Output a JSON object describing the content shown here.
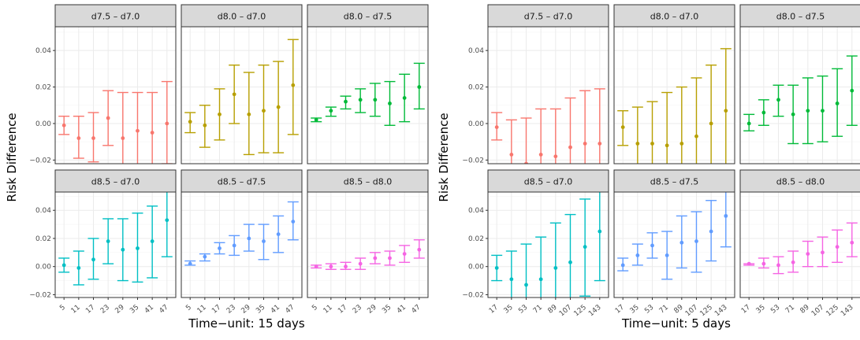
{
  "figures": [
    {
      "ylabel": "Risk Difference",
      "xlabel": "Time−unit: 15 days"
    },
    {
      "ylabel": "Risk Difference",
      "xlabel": "Time−unit: 5 days"
    }
  ],
  "colors": {
    "d7.5 – d7.0": "#F8766D",
    "d8.0 – d7.0": "#B79F00",
    "d8.0 – d7.5": "#00BA38",
    "d8.5 – d7.0": "#00BFC4",
    "d8.5 – d7.5": "#619CFF",
    "d8.5 – d8.0": "#F564E3"
  },
  "chart_data": [
    {
      "type": "scatter",
      "subtype": "point-range with error bars, faceted 2x3",
      "xlabel": "Time−unit: 15 days",
      "ylabel": "Risk Difference",
      "x_ticks": [
        "5",
        "11",
        "17",
        "23",
        "29",
        "35",
        "41",
        "47"
      ],
      "ylim": [
        -0.022,
        0.053
      ],
      "y_ticks": [
        -0.02,
        0.0,
        0.02,
        0.04
      ],
      "y_tick_labels": [
        "−0.02",
        "0.00",
        "0.02",
        "0.04"
      ],
      "grid": true,
      "panels": [
        {
          "title": "d7.5 – d7.0",
          "points": [
            {
              "x": "5",
              "y": -0.001,
              "lo": -0.006,
              "hi": 0.004
            },
            {
              "x": "11",
              "y": -0.008,
              "lo": -0.019,
              "hi": 0.004
            },
            {
              "x": "17",
              "y": -0.008,
              "lo": -0.021,
              "hi": 0.006
            },
            {
              "x": "23",
              "y": 0.003,
              "lo": -0.012,
              "hi": 0.018
            },
            {
              "x": "29",
              "y": -0.008,
              "lo": -0.034,
              "hi": 0.017
            },
            {
              "x": "35",
              "y": -0.004,
              "lo": -0.026,
              "hi": 0.017
            },
            {
              "x": "41",
              "y": -0.005,
              "lo": -0.027,
              "hi": 0.017
            },
            {
              "x": "47",
              "y": 0.0,
              "lo": -0.022,
              "hi": 0.023
            }
          ]
        },
        {
          "title": "d8.0 – d7.0",
          "points": [
            {
              "x": "5",
              "y": 0.001,
              "lo": -0.005,
              "hi": 0.006
            },
            {
              "x": "11",
              "y": -0.001,
              "lo": -0.013,
              "hi": 0.01
            },
            {
              "x": "17",
              "y": 0.005,
              "lo": -0.009,
              "hi": 0.019
            },
            {
              "x": "23",
              "y": 0.016,
              "lo": 0.0,
              "hi": 0.032
            },
            {
              "x": "29",
              "y": 0.005,
              "lo": -0.017,
              "hi": 0.028
            },
            {
              "x": "35",
              "y": 0.007,
              "lo": -0.016,
              "hi": 0.032
            },
            {
              "x": "41",
              "y": 0.009,
              "lo": -0.016,
              "hi": 0.034
            },
            {
              "x": "47",
              "y": 0.021,
              "lo": -0.006,
              "hi": 0.046
            }
          ]
        },
        {
          "title": "d8.0 – d7.5",
          "points": [
            {
              "x": "5",
              "y": 0.002,
              "lo": 0.001,
              "hi": 0.003
            },
            {
              "x": "11",
              "y": 0.007,
              "lo": 0.004,
              "hi": 0.009
            },
            {
              "x": "17",
              "y": 0.012,
              "lo": 0.008,
              "hi": 0.015
            },
            {
              "x": "23",
              "y": 0.013,
              "lo": 0.006,
              "hi": 0.019
            },
            {
              "x": "29",
              "y": 0.013,
              "lo": 0.004,
              "hi": 0.022
            },
            {
              "x": "35",
              "y": 0.011,
              "lo": -0.001,
              "hi": 0.023
            },
            {
              "x": "41",
              "y": 0.014,
              "lo": 0.001,
              "hi": 0.027
            },
            {
              "x": "47",
              "y": 0.02,
              "lo": 0.008,
              "hi": 0.033
            }
          ]
        },
        {
          "title": "d8.5 – d7.0",
          "points": [
            {
              "x": "5",
              "y": 0.001,
              "lo": -0.004,
              "hi": 0.006
            },
            {
              "x": "11",
              "y": -0.001,
              "lo": -0.013,
              "hi": 0.011
            },
            {
              "x": "17",
              "y": 0.005,
              "lo": -0.009,
              "hi": 0.02
            },
            {
              "x": "23",
              "y": 0.018,
              "lo": 0.002,
              "hi": 0.034
            },
            {
              "x": "29",
              "y": 0.012,
              "lo": -0.01,
              "hi": 0.034
            },
            {
              "x": "35",
              "y": 0.013,
              "lo": -0.011,
              "hi": 0.038
            },
            {
              "x": "41",
              "y": 0.018,
              "lo": -0.008,
              "hi": 0.043
            },
            {
              "x": "47",
              "y": 0.033,
              "lo": 0.007,
              "hi": 0.06
            }
          ]
        },
        {
          "title": "d8.5 – d7.5",
          "points": [
            {
              "x": "5",
              "y": 0.002,
              "lo": 0.001,
              "hi": 0.004
            },
            {
              "x": "11",
              "y": 0.007,
              "lo": 0.004,
              "hi": 0.009
            },
            {
              "x": "17",
              "y": 0.013,
              "lo": 0.009,
              "hi": 0.017
            },
            {
              "x": "23",
              "y": 0.015,
              "lo": 0.008,
              "hi": 0.022
            },
            {
              "x": "29",
              "y": 0.02,
              "lo": 0.011,
              "hi": 0.03
            },
            {
              "x": "35",
              "y": 0.018,
              "lo": 0.005,
              "hi": 0.03
            },
            {
              "x": "41",
              "y": 0.023,
              "lo": 0.01,
              "hi": 0.036
            },
            {
              "x": "47",
              "y": 0.032,
              "lo": 0.019,
              "hi": 0.046
            }
          ]
        },
        {
          "title": "d8.5 – d8.0",
          "points": [
            {
              "x": "5",
              "y": 0.0,
              "lo": -0.001,
              "hi": 0.001
            },
            {
              "x": "11",
              "y": 0.0,
              "lo": -0.002,
              "hi": 0.002
            },
            {
              "x": "17",
              "y": 0.0,
              "lo": -0.002,
              "hi": 0.003
            },
            {
              "x": "23",
              "y": 0.002,
              "lo": -0.002,
              "hi": 0.006
            },
            {
              "x": "29",
              "y": 0.006,
              "lo": 0.002,
              "hi": 0.01
            },
            {
              "x": "35",
              "y": 0.006,
              "lo": 0.001,
              "hi": 0.011
            },
            {
              "x": "41",
              "y": 0.009,
              "lo": 0.003,
              "hi": 0.015
            },
            {
              "x": "47",
              "y": 0.012,
              "lo": 0.006,
              "hi": 0.019
            }
          ]
        }
      ]
    },
    {
      "type": "scatter",
      "subtype": "point-range with error bars, faceted 2x3",
      "xlabel": "Time−unit: 5 days",
      "ylabel": "Risk Difference",
      "x_ticks": [
        "17",
        "35",
        "53",
        "71",
        "89",
        "107",
        "125",
        "143"
      ],
      "ylim": [
        -0.022,
        0.053
      ],
      "y_ticks": [
        -0.02,
        0.0,
        0.02,
        0.04
      ],
      "y_tick_labels": [
        "−0.02",
        "0.00",
        "0.02",
        "0.04"
      ],
      "grid": true,
      "panels": [
        {
          "title": "d7.5 – d7.0",
          "points": [
            {
              "x": "17",
              "y": -0.002,
              "lo": -0.009,
              "hi": 0.006
            },
            {
              "x": "35",
              "y": -0.017,
              "lo": -0.036,
              "hi": 0.002
            },
            {
              "x": "53",
              "y": -0.022,
              "lo": -0.05,
              "hi": 0.003
            },
            {
              "x": "71",
              "y": -0.017,
              "lo": -0.05,
              "hi": 0.008
            },
            {
              "x": "89",
              "y": -0.018,
              "lo": -0.05,
              "hi": 0.008
            },
            {
              "x": "107",
              "y": -0.013,
              "lo": -0.05,
              "hi": 0.014
            },
            {
              "x": "125",
              "y": -0.011,
              "lo": -0.05,
              "hi": 0.018
            },
            {
              "x": "143",
              "y": -0.011,
              "lo": -0.05,
              "hi": 0.019
            }
          ]
        },
        {
          "title": "d8.0 – d7.0",
          "points": [
            {
              "x": "17",
              "y": -0.002,
              "lo": -0.012,
              "hi": 0.007
            },
            {
              "x": "35",
              "y": -0.011,
              "lo": -0.03,
              "hi": 0.009
            },
            {
              "x": "53",
              "y": -0.011,
              "lo": -0.034,
              "hi": 0.012
            },
            {
              "x": "71",
              "y": -0.012,
              "lo": -0.04,
              "hi": 0.017
            },
            {
              "x": "89",
              "y": -0.011,
              "lo": -0.044,
              "hi": 0.02
            },
            {
              "x": "107",
              "y": -0.007,
              "lo": -0.04,
              "hi": 0.025
            },
            {
              "x": "125",
              "y": 0.0,
              "lo": -0.034,
              "hi": 0.032
            },
            {
              "x": "143",
              "y": 0.007,
              "lo": -0.026,
              "hi": 0.041
            }
          ]
        },
        {
          "title": "d8.0 – d7.5",
          "points": [
            {
              "x": "17",
              "y": 0.0,
              "lo": -0.004,
              "hi": 0.005
            },
            {
              "x": "35",
              "y": 0.006,
              "lo": -0.001,
              "hi": 0.013
            },
            {
              "x": "53",
              "y": 0.013,
              "lo": 0.004,
              "hi": 0.021
            },
            {
              "x": "71",
              "y": 0.005,
              "lo": -0.011,
              "hi": 0.021
            },
            {
              "x": "89",
              "y": 0.007,
              "lo": -0.011,
              "hi": 0.025
            },
            {
              "x": "107",
              "y": 0.007,
              "lo": -0.01,
              "hi": 0.026
            },
            {
              "x": "125",
              "y": 0.011,
              "lo": -0.007,
              "hi": 0.03
            },
            {
              "x": "143",
              "y": 0.018,
              "lo": -0.001,
              "hi": 0.037
            }
          ]
        },
        {
          "title": "d8.5 – d7.0",
          "points": [
            {
              "x": "17",
              "y": -0.001,
              "lo": -0.01,
              "hi": 0.008
            },
            {
              "x": "35",
              "y": -0.009,
              "lo": -0.03,
              "hi": 0.011
            },
            {
              "x": "53",
              "y": -0.013,
              "lo": -0.04,
              "hi": 0.016
            },
            {
              "x": "71",
              "y": -0.009,
              "lo": -0.038,
              "hi": 0.021
            },
            {
              "x": "89",
              "y": -0.001,
              "lo": -0.032,
              "hi": 0.031
            },
            {
              "x": "107",
              "y": 0.003,
              "lo": -0.03,
              "hi": 0.037
            },
            {
              "x": "125",
              "y": 0.014,
              "lo": -0.021,
              "hi": 0.048
            },
            {
              "x": "143",
              "y": 0.025,
              "lo": -0.01,
              "hi": 0.06
            }
          ]
        },
        {
          "title": "d8.5 – d7.5",
          "points": [
            {
              "x": "17",
              "y": 0.001,
              "lo": -0.003,
              "hi": 0.006
            },
            {
              "x": "35",
              "y": 0.008,
              "lo": 0.001,
              "hi": 0.016
            },
            {
              "x": "53",
              "y": 0.015,
              "lo": 0.006,
              "hi": 0.024
            },
            {
              "x": "71",
              "y": 0.008,
              "lo": -0.009,
              "hi": 0.025
            },
            {
              "x": "89",
              "y": 0.017,
              "lo": -0.001,
              "hi": 0.036
            },
            {
              "x": "107",
              "y": 0.018,
              "lo": -0.004,
              "hi": 0.039
            },
            {
              "x": "125",
              "y": 0.025,
              "lo": 0.004,
              "hi": 0.047
            },
            {
              "x": "143",
              "y": 0.036,
              "lo": 0.014,
              "hi": 0.058
            }
          ]
        },
        {
          "title": "d8.5 – d8.0",
          "points": [
            {
              "x": "17",
              "y": 0.002,
              "lo": 0.001,
              "hi": 0.002
            },
            {
              "x": "35",
              "y": 0.002,
              "lo": -0.001,
              "hi": 0.006
            },
            {
              "x": "53",
              "y": 0.001,
              "lo": -0.005,
              "hi": 0.007
            },
            {
              "x": "71",
              "y": 0.003,
              "lo": -0.004,
              "hi": 0.011
            },
            {
              "x": "89",
              "y": 0.009,
              "lo": 0.0,
              "hi": 0.018
            },
            {
              "x": "107",
              "y": 0.01,
              "lo": 0.0,
              "hi": 0.021
            },
            {
              "x": "125",
              "y": 0.014,
              "lo": 0.003,
              "hi": 0.026
            },
            {
              "x": "143",
              "y": 0.017,
              "lo": 0.007,
              "hi": 0.031
            }
          ]
        }
      ]
    }
  ]
}
